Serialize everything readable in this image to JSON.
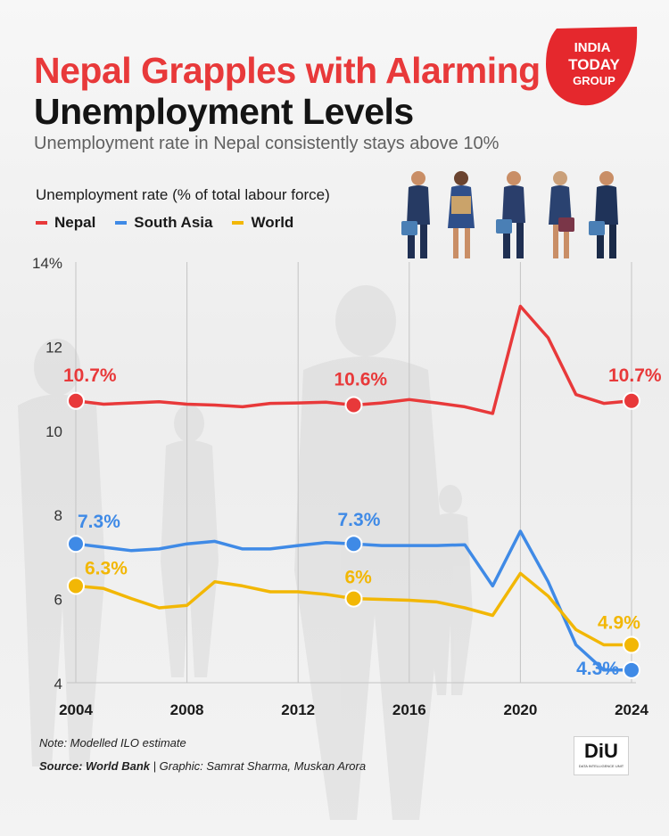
{
  "header": {
    "title_line1": "Nepal Grapples with Alarming",
    "title_line2": "Unemployment Levels",
    "subtitle": "Unemployment rate in Nepal consistently stays above 10%"
  },
  "brand": {
    "logo_lines": [
      "INDIA",
      "TODAY",
      "GROUP"
    ],
    "badge_text": "DiU",
    "badge_subtext": "DATA INTELLIGENCE UNIT"
  },
  "footer": {
    "note": "Note: Modelled ILO estimate",
    "source": "Source: World Bank",
    "separator": "|",
    "credit": "Graphic: Samrat Sharma, Muskan Arora"
  },
  "colors": {
    "nepal": "#e8393a",
    "south_asia": "#3f8ae6",
    "world": "#f2b705"
  },
  "chart_data": {
    "type": "line",
    "title": "Nepal Grapples with Alarming Unemployment Levels",
    "subtitle": "Unemployment rate in Nepal consistently stays above 10%",
    "ylabel": "Unemployment rate (% of total labour force)",
    "xlabel": "",
    "x": [
      2004,
      2005,
      2006,
      2007,
      2008,
      2009,
      2010,
      2011,
      2012,
      2013,
      2014,
      2015,
      2016,
      2017,
      2018,
      2019,
      2020,
      2021,
      2022,
      2023,
      2024
    ],
    "ylim": [
      4,
      14
    ],
    "xlim": [
      2004,
      2024
    ],
    "y_ticks": [
      4,
      6,
      8,
      10,
      12,
      14
    ],
    "y_tick_labels": [
      "4",
      "6",
      "8",
      "10",
      "12",
      "14%"
    ],
    "x_ticks": [
      2004,
      2008,
      2012,
      2016,
      2020,
      2024
    ],
    "grid": "vertical",
    "legend_position": "top-left",
    "series": [
      {
        "name": "Nepal",
        "color_key": "nepal",
        "values": [
          10.7,
          10.62,
          10.65,
          10.68,
          10.62,
          10.6,
          10.56,
          10.64,
          10.65,
          10.67,
          10.6,
          10.65,
          10.73,
          10.65,
          10.56,
          10.4,
          12.95,
          12.2,
          10.85,
          10.64,
          10.7
        ]
      },
      {
        "name": "South Asia",
        "color_key": "south_asia",
        "values": [
          7.3,
          7.22,
          7.14,
          7.18,
          7.3,
          7.36,
          7.18,
          7.18,
          7.26,
          7.33,
          7.3,
          7.26,
          7.26,
          7.26,
          7.28,
          6.3,
          7.6,
          6.4,
          4.9,
          4.3,
          4.3
        ]
      },
      {
        "name": "World",
        "color_key": "world",
        "values": [
          6.3,
          6.24,
          6.0,
          5.78,
          5.84,
          6.4,
          6.3,
          6.16,
          6.16,
          6.1,
          6.0,
          5.98,
          5.96,
          5.92,
          5.78,
          5.6,
          6.6,
          6.06,
          5.26,
          4.9,
          4.9
        ]
      }
    ],
    "annotations": [
      {
        "series": "Nepal",
        "x": 2004,
        "label": "10.7%"
      },
      {
        "series": "Nepal",
        "x": 2014,
        "label": "10.6%"
      },
      {
        "series": "Nepal",
        "x": 2024,
        "label": "10.7%"
      },
      {
        "series": "South Asia",
        "x": 2004,
        "label": "7.3%"
      },
      {
        "series": "South Asia",
        "x": 2014,
        "label": "7.3%"
      },
      {
        "series": "South Asia",
        "x": 2024,
        "label": "4.3%"
      },
      {
        "series": "World",
        "x": 2004,
        "label": "6.3%"
      },
      {
        "series": "World",
        "x": 2014,
        "label": "6%"
      },
      {
        "series": "World",
        "x": 2024,
        "label": "4.9%"
      }
    ]
  }
}
